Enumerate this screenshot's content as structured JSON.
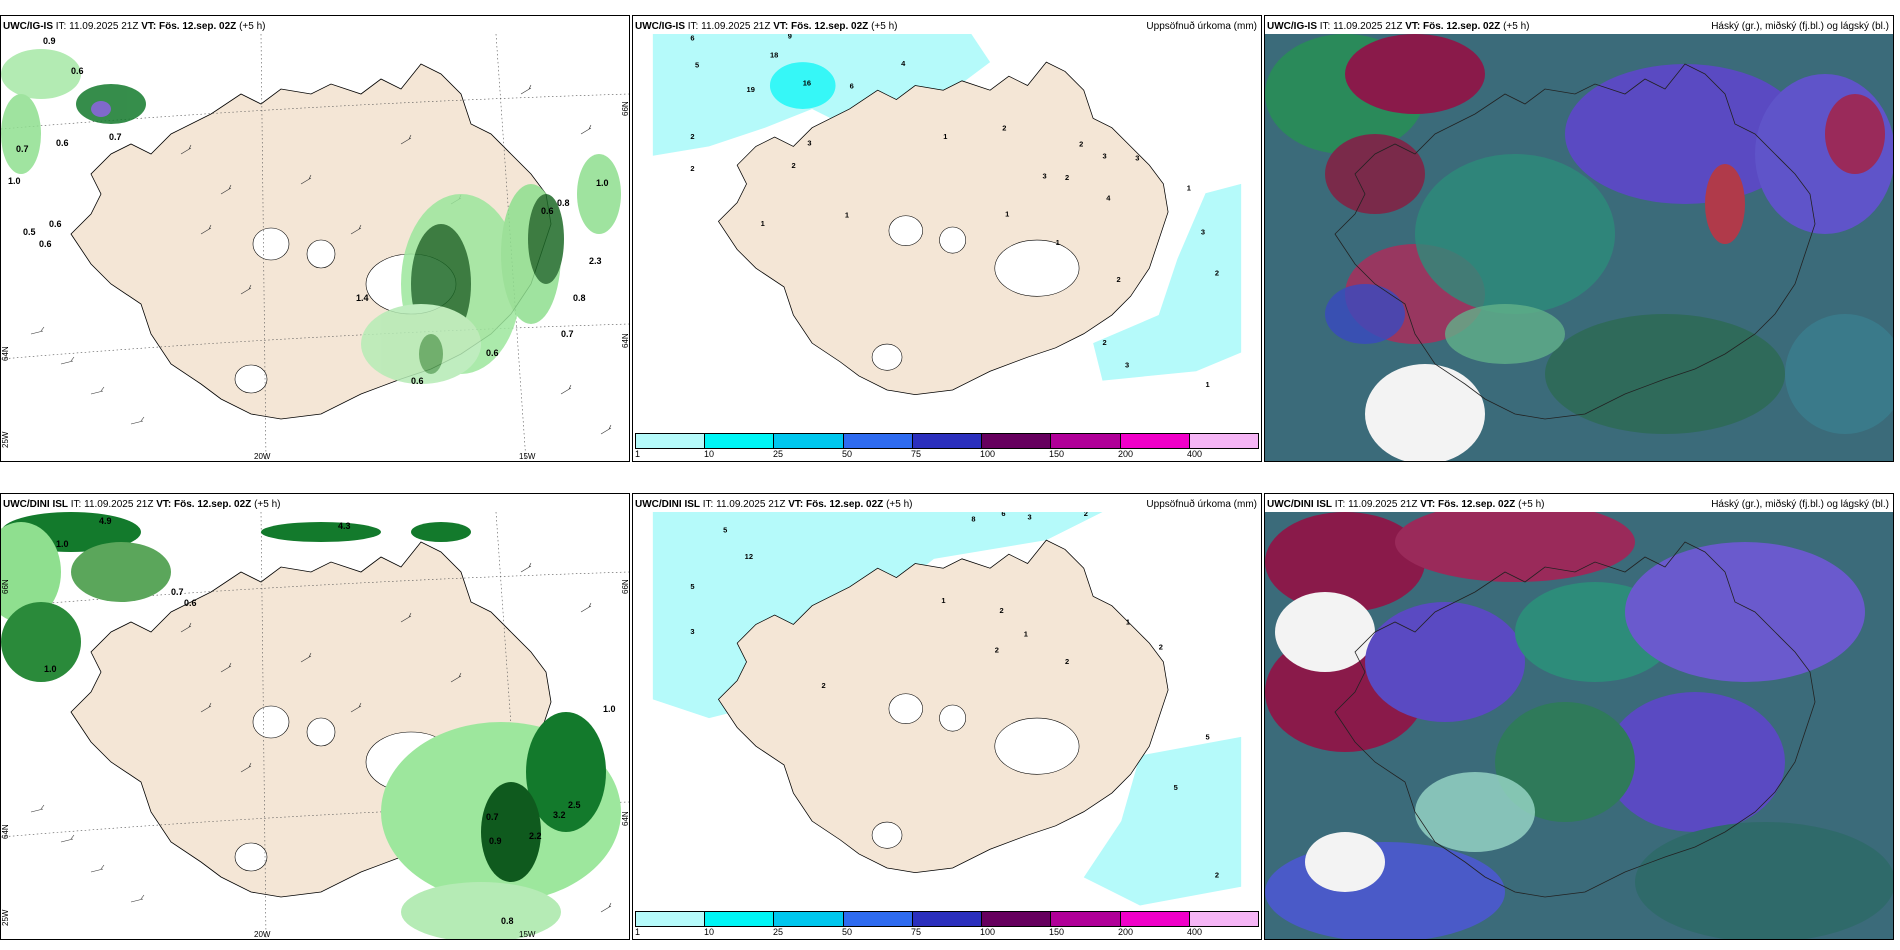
{
  "panels": [
    {
      "model": "UWC/IG-IS",
      "it_label": "IT:",
      "it": "11.09.2025 21Z",
      "vt_label": "VT:",
      "vt": "Fös. 12.sep. 02Z",
      "offset": "(+5 h)",
      "right_title": ""
    },
    {
      "model": "UWC/IG-IS",
      "it_label": "IT:",
      "it": "11.09.2025 21Z",
      "vt_label": "VT:",
      "vt": "Fös. 12.sep. 02Z",
      "offset": "(+5 h)",
      "right_title": "Uppsöfnuð úrkoma (mm)"
    },
    {
      "model": "UWC/IG-IS",
      "it_label": "IT:",
      "it": "11.09.2025 21Z",
      "vt_label": "VT:",
      "vt": "Fös. 12.sep. 02Z",
      "offset": "(+5 h)",
      "right_title": "Háský (gr.), miðský (fj.bl.) og lágský (bl.)"
    },
    {
      "model": "UWC/DINI ISL",
      "it_label": "IT:",
      "it": "11.09.2025 21Z",
      "vt_label": "VT:",
      "vt": "Fös. 12.sep. 02Z",
      "offset": "(+5 h)",
      "right_title": ""
    },
    {
      "model": "UWC/DINI ISL",
      "it_label": "IT:",
      "it": "11.09.2025 21Z",
      "vt_label": "VT:",
      "vt": "Fös. 12.sep. 02Z",
      "offset": "(+5 h)",
      "right_title": "Uppsöfnuð úrkoma (mm)"
    },
    {
      "model": "UWC/DINI ISL",
      "it_label": "IT:",
      "it": "11.09.2025 21Z",
      "vt_label": "VT:",
      "vt": "Fös. 12.sep. 02Z",
      "offset": "(+5 h)",
      "right_title": "Háský (gr.), miðský (fj.bl.) og lágský (bl.)"
    }
  ],
  "axes": {
    "lat_66": "66N",
    "lat_64": "64N",
    "lat_25w": "25W",
    "lon_20w": "20W",
    "lon_15w": "15W"
  },
  "colorbar": {
    "ticks": [
      "1",
      "10",
      "25",
      "50",
      "75",
      "100",
      "150",
      "200",
      "400"
    ],
    "colors": [
      "#b5fafa",
      "#00f5f5",
      "#00c7ee",
      "#2e6bf0",
      "#2b2fbd",
      "#66005e",
      "#b00098",
      "#f000c8",
      "#f5b5f5"
    ]
  },
  "precip_labels_ig": [
    "9",
    "6",
    "5",
    "18",
    "19",
    "16",
    "4",
    "6",
    "3",
    "2",
    "2",
    "2",
    "1",
    "1",
    "1",
    "2",
    "2",
    "3",
    "3",
    "3",
    "2",
    "4",
    "1",
    "1",
    "1",
    "2",
    "3",
    "2",
    "2",
    "3",
    "1"
  ],
  "precip_labels_dini": [
    "5",
    "8",
    "6",
    "3",
    "2",
    "5",
    "12",
    "3",
    "2",
    "1",
    "2",
    "2",
    "1",
    "2",
    "1",
    "2",
    "5",
    "5",
    "2"
  ],
  "wind_labels_ig": [
    "0.9",
    "0.6",
    "0.7",
    "0.6",
    "0.7",
    "1.0",
    "0.6",
    "0.5",
    "0.6",
    "1.4",
    "1.0",
    "0.6",
    "0.8",
    "0.6",
    "0.7",
    "0.6",
    "2.3",
    "0.8"
  ],
  "wind_labels_dini": [
    "4.9",
    "1.0",
    "0.7",
    "0.6",
    "1.0",
    "1.0",
    "4.3",
    "0.7",
    "0.9",
    "2.2",
    "3.2",
    "2.5",
    "0.8"
  ]
}
